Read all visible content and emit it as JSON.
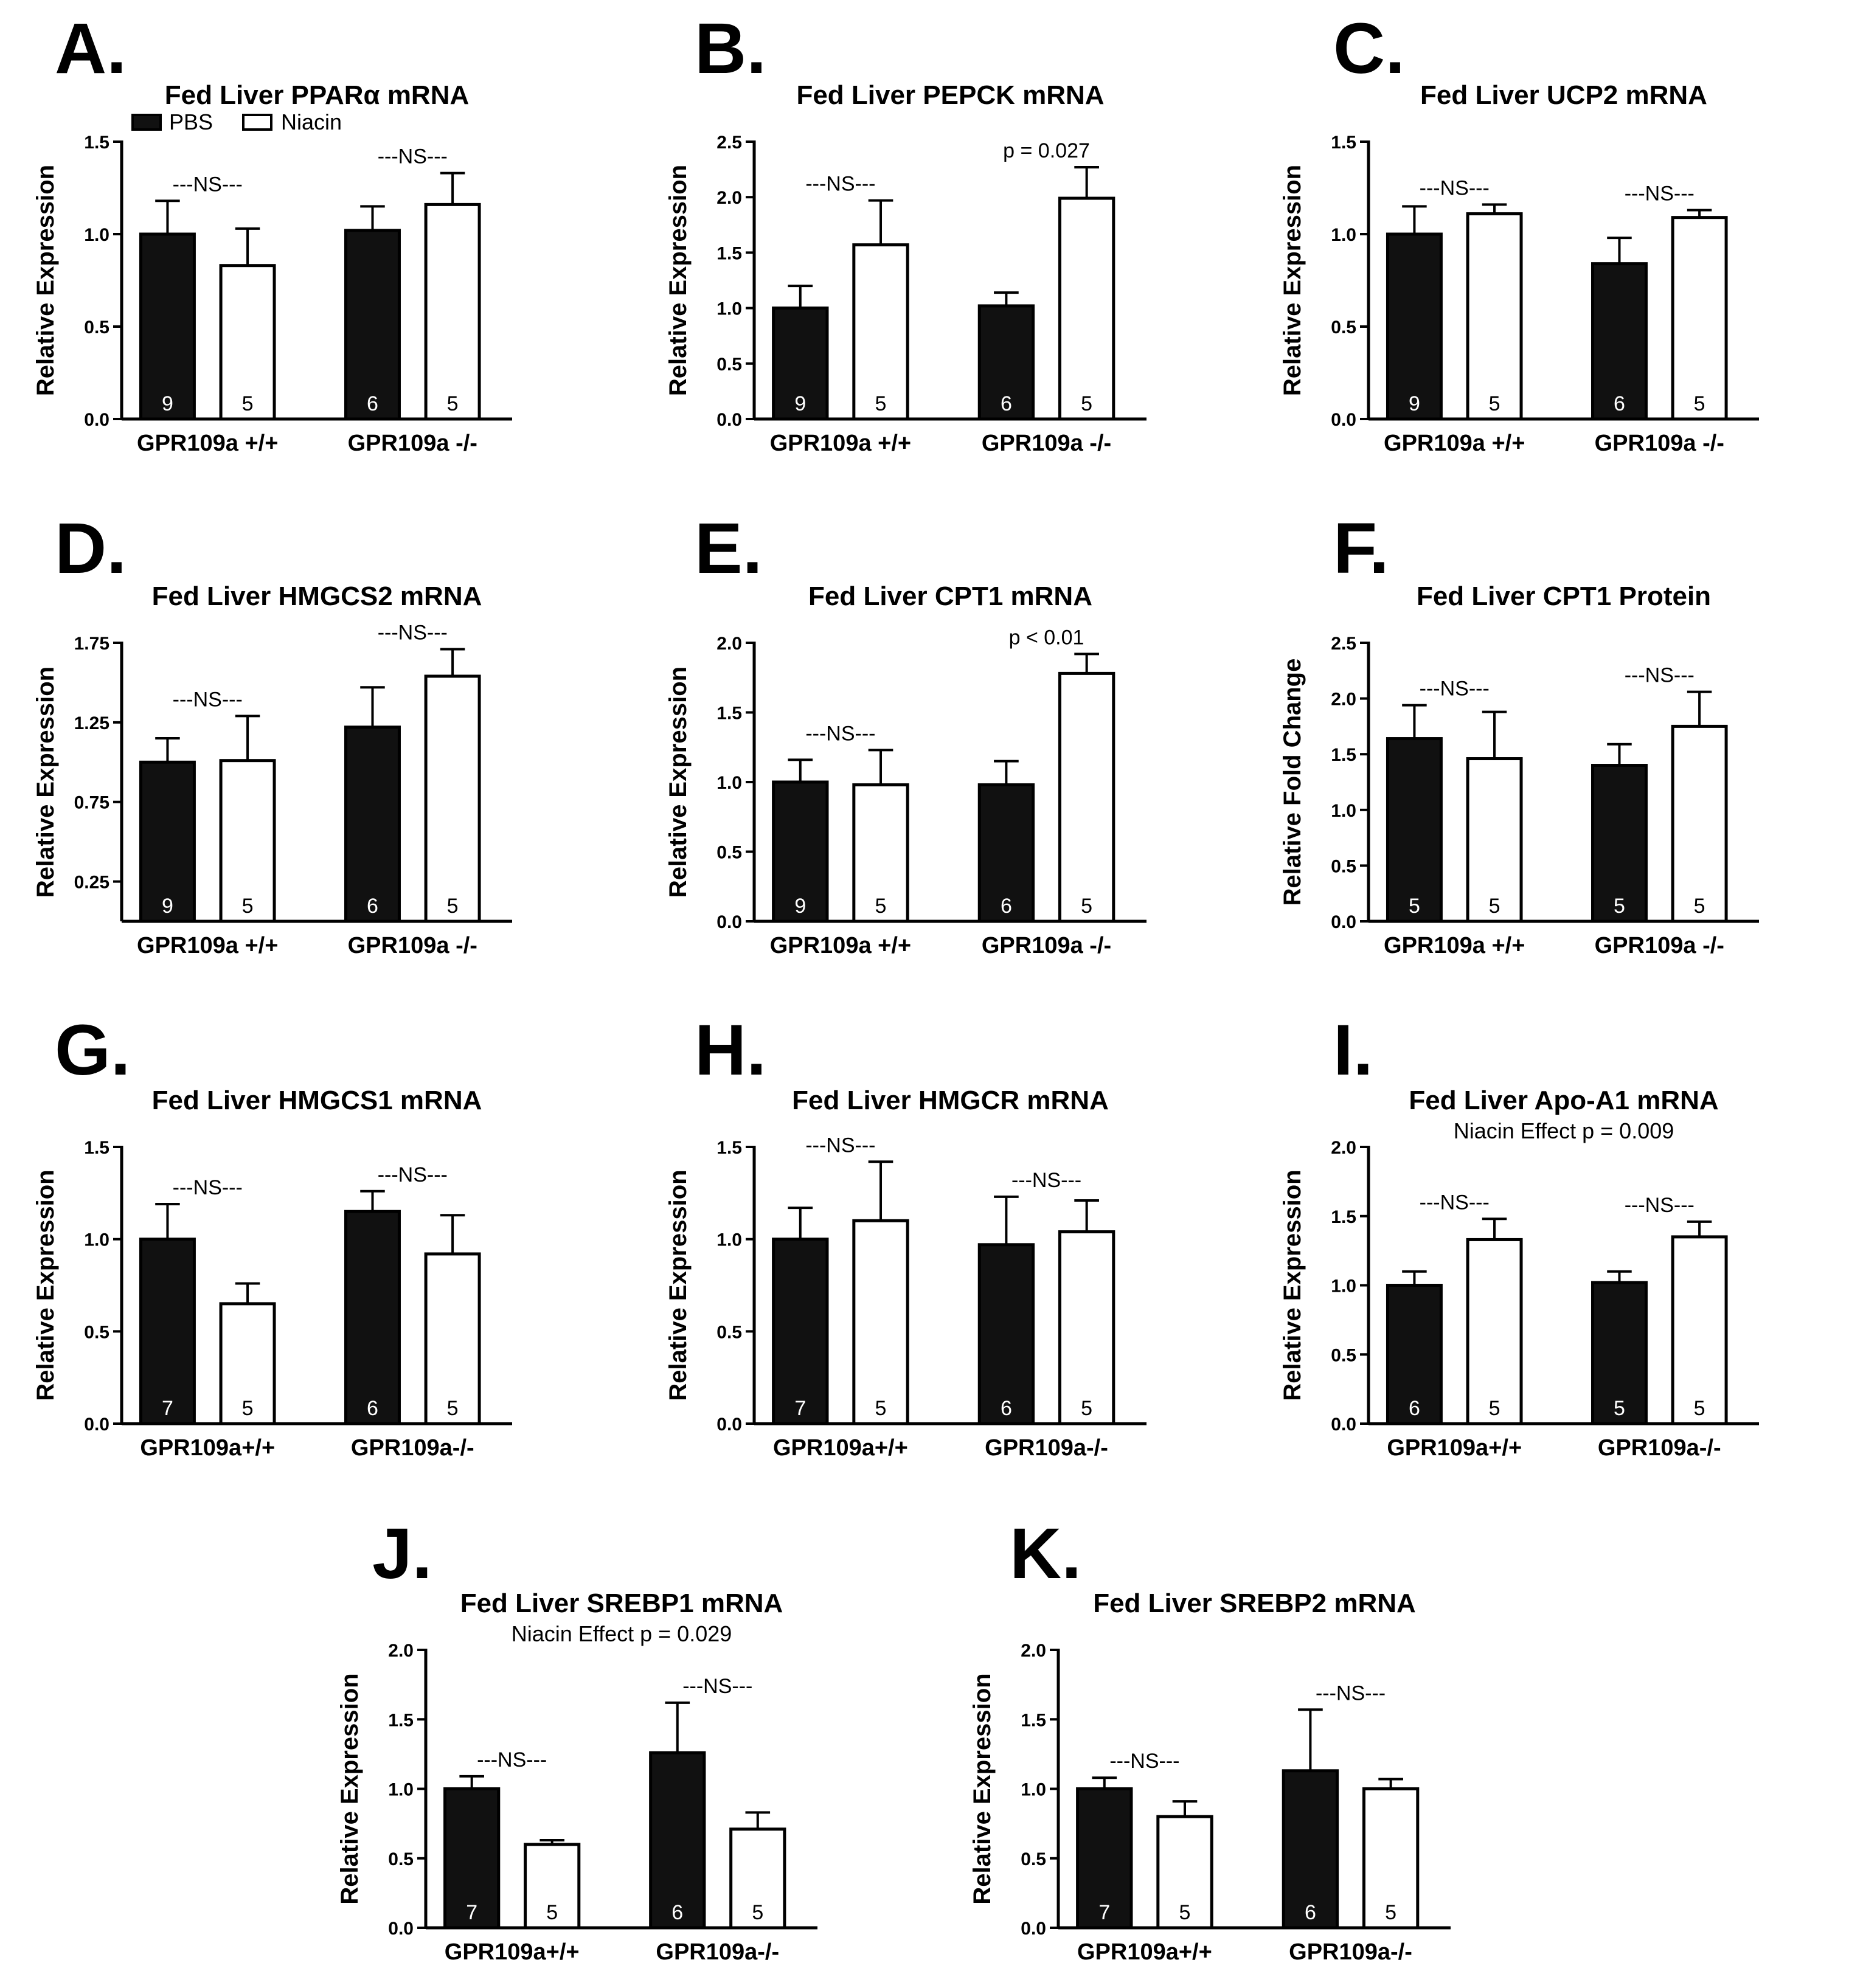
{
  "figure": {
    "legend": {
      "pbs": "PBS",
      "niacin": "Niacin",
      "pbs_color": "#111111",
      "niacin_color": "#ffffff"
    }
  },
  "chart_data": [
    {
      "panel": "A.",
      "type": "bar",
      "title": "Fed Liver PPARα mRNA",
      "subtitle": "",
      "ylabel": "Relative Expression",
      "ylim": [
        0,
        1.5
      ],
      "yticks": [
        0,
        0.5,
        1,
        1.5
      ],
      "ytick_labels": [
        "0.0",
        "0.5",
        "1.0",
        "1.5"
      ],
      "categories": [
        "GPR109a +/+",
        "GPR109a -/-"
      ],
      "series": [
        {
          "name": "PBS",
          "values": [
            1.0,
            1.02
          ],
          "errors": [
            0.18,
            0.13
          ],
          "n": [
            "9",
            "6"
          ]
        },
        {
          "name": "Niacin",
          "values": [
            0.83,
            1.16
          ],
          "errors": [
            0.2,
            0.17
          ],
          "n": [
            "5",
            "5"
          ]
        }
      ],
      "annotations": [
        "---NS---",
        "---NS---"
      ],
      "show_legend": true
    },
    {
      "panel": "B.",
      "type": "bar",
      "title": "Fed Liver PEPCK mRNA",
      "subtitle": "",
      "ylabel": "Relative Expression",
      "ylim": [
        0,
        2.5
      ],
      "yticks": [
        0,
        0.5,
        1,
        1.5,
        2,
        2.5
      ],
      "ytick_labels": [
        "0.0",
        "0.5",
        "1.0",
        "1.5",
        "2.0",
        "2.5"
      ],
      "categories": [
        "GPR109a +/+",
        "GPR109a -/-"
      ],
      "series": [
        {
          "name": "PBS",
          "values": [
            1.0,
            1.02
          ],
          "errors": [
            0.2,
            0.12
          ],
          "n": [
            "9",
            "6"
          ]
        },
        {
          "name": "Niacin",
          "values": [
            1.57,
            1.99
          ],
          "errors": [
            0.4,
            0.28
          ],
          "n": [
            "5",
            "5"
          ]
        }
      ],
      "annotations": [
        "---NS---",
        "p = 0.027"
      ]
    },
    {
      "panel": "C.",
      "type": "bar",
      "title": "Fed Liver UCP2 mRNA",
      "subtitle": "",
      "ylabel": "Relative Expression",
      "ylim": [
        0,
        1.5
      ],
      "yticks": [
        0,
        0.5,
        1,
        1.5
      ],
      "ytick_labels": [
        "0.0",
        "0.5",
        "1.0",
        "1.5"
      ],
      "categories": [
        "GPR109a +/+",
        "GPR109a -/-"
      ],
      "series": [
        {
          "name": "PBS",
          "values": [
            1.0,
            0.84
          ],
          "errors": [
            0.15,
            0.14
          ],
          "n": [
            "9",
            "6"
          ]
        },
        {
          "name": "Niacin",
          "values": [
            1.11,
            1.09
          ],
          "errors": [
            0.05,
            0.04
          ],
          "n": [
            "5",
            "5"
          ]
        }
      ],
      "annotations": [
        "---NS---",
        "---NS---"
      ]
    },
    {
      "panel": "D.",
      "type": "bar",
      "title": "Fed Liver HMGCS2 mRNA",
      "subtitle": "",
      "ylabel": "Relative Expression",
      "ylim": [
        0,
        1.75
      ],
      "yticks": [
        0.25,
        0.75,
        1.25,
        1.75
      ],
      "ytick_labels": [
        "0.25",
        "0.75",
        "1.25",
        "1.75"
      ],
      "categories": [
        "GPR109a +/+",
        "GPR109a -/-"
      ],
      "series": [
        {
          "name": "PBS",
          "values": [
            1.0,
            1.22
          ],
          "errors": [
            0.15,
            0.25
          ],
          "n": [
            "9",
            "6"
          ]
        },
        {
          "name": "Niacin",
          "values": [
            1.01,
            1.54
          ],
          "errors": [
            0.28,
            0.17
          ],
          "n": [
            "5",
            "5"
          ]
        }
      ],
      "annotations": [
        "---NS---",
        "---NS---"
      ]
    },
    {
      "panel": "E.",
      "type": "bar",
      "title": "Fed Liver CPT1 mRNA",
      "subtitle": "",
      "ylabel": "Relative Expression",
      "ylim": [
        0,
        2.0
      ],
      "yticks": [
        0,
        0.5,
        1,
        1.5,
        2
      ],
      "ytick_labels": [
        "0.0",
        "0.5",
        "1.0",
        "1.5",
        "2.0"
      ],
      "categories": [
        "GPR109a +/+",
        "GPR109a -/-"
      ],
      "series": [
        {
          "name": "PBS",
          "values": [
            1.0,
            0.98
          ],
          "errors": [
            0.16,
            0.17
          ],
          "n": [
            "9",
            "6"
          ]
        },
        {
          "name": "Niacin",
          "values": [
            0.98,
            1.78
          ],
          "errors": [
            0.25,
            0.14
          ],
          "n": [
            "5",
            "5"
          ]
        }
      ],
      "annotations": [
        "---NS---",
        "p < 0.01"
      ]
    },
    {
      "panel": "F.",
      "type": "bar",
      "title": "Fed Liver CPT1 Protein",
      "subtitle": "",
      "ylabel": "Relative Fold Change",
      "ylim": [
        0,
        2.5
      ],
      "yticks": [
        0,
        0.5,
        1,
        1.5,
        2,
        2.5
      ],
      "ytick_labels": [
        "0.0",
        "0.5",
        "1.0",
        "1.5",
        "2.0",
        "2.5"
      ],
      "categories": [
        "GPR109a +/+",
        "GPR109a -/-"
      ],
      "series": [
        {
          "name": "PBS",
          "values": [
            1.64,
            1.4
          ],
          "errors": [
            0.3,
            0.19
          ],
          "n": [
            "5",
            "5"
          ]
        },
        {
          "name": "Niacin",
          "values": [
            1.46,
            1.75
          ],
          "errors": [
            0.42,
            0.31
          ],
          "n": [
            "5",
            "5"
          ]
        }
      ],
      "annotations": [
        "---NS---",
        "---NS---"
      ]
    },
    {
      "panel": "G.",
      "type": "bar",
      "title": "Fed Liver HMGCS1 mRNA",
      "subtitle": "",
      "ylabel": "Relative Expression",
      "ylim": [
        0,
        1.5
      ],
      "yticks": [
        0,
        0.5,
        1,
        1.5
      ],
      "ytick_labels": [
        "0.0",
        "0.5",
        "1.0",
        "1.5"
      ],
      "categories": [
        "GPR109a+/+",
        "GPR109a-/-"
      ],
      "series": [
        {
          "name": "PBS",
          "values": [
            1.0,
            1.15
          ],
          "errors": [
            0.19,
            0.11
          ],
          "n": [
            "7",
            "6"
          ]
        },
        {
          "name": "Niacin",
          "values": [
            0.65,
            0.92
          ],
          "errors": [
            0.11,
            0.21
          ],
          "n": [
            "5",
            "5"
          ]
        }
      ],
      "annotations": [
        "---NS---",
        "---NS---"
      ]
    },
    {
      "panel": "H.",
      "type": "bar",
      "title": "Fed Liver HMGCR mRNA",
      "subtitle": "",
      "ylabel": "Relative Expression",
      "ylim": [
        0,
        1.5
      ],
      "yticks": [
        0,
        0.5,
        1,
        1.5
      ],
      "ytick_labels": [
        "0.0",
        "0.5",
        "1.0",
        "1.5"
      ],
      "categories": [
        "GPR109a+/+",
        "GPR109a-/-"
      ],
      "series": [
        {
          "name": "PBS",
          "values": [
            1.0,
            0.97
          ],
          "errors": [
            0.17,
            0.26
          ],
          "n": [
            "7",
            "6"
          ]
        },
        {
          "name": "Niacin",
          "values": [
            1.1,
            1.04
          ],
          "errors": [
            0.32,
            0.17
          ],
          "n": [
            "5",
            "5"
          ]
        }
      ],
      "annotations": [
        "---NS---",
        "---NS---"
      ]
    },
    {
      "panel": "I.",
      "type": "bar",
      "title": "Fed Liver Apo-A1 mRNA",
      "subtitle": "Niacin Effect p = 0.009",
      "ylabel": "Relative Expression",
      "ylim": [
        0,
        2.0
      ],
      "yticks": [
        0,
        0.5,
        1,
        1.5,
        2
      ],
      "ytick_labels": [
        "0.0",
        "0.5",
        "1.0",
        "1.5",
        "2.0"
      ],
      "categories": [
        "GPR109a+/+",
        "GPR109a-/-"
      ],
      "series": [
        {
          "name": "PBS",
          "values": [
            1.0,
            1.02
          ],
          "errors": [
            0.1,
            0.08
          ],
          "n": [
            "6",
            "5"
          ]
        },
        {
          "name": "Niacin",
          "values": [
            1.33,
            1.35
          ],
          "errors": [
            0.15,
            0.11
          ],
          "n": [
            "5",
            "5"
          ]
        }
      ],
      "annotations": [
        "---NS---",
        "---NS---"
      ]
    },
    {
      "panel": "J.",
      "type": "bar",
      "title": "Fed Liver SREBP1 mRNA",
      "subtitle": "Niacin Effect p = 0.029",
      "ylabel": "Relative Expression",
      "ylim": [
        0,
        2.0
      ],
      "yticks": [
        0,
        0.5,
        1,
        1.5,
        2
      ],
      "ytick_labels": [
        "0.0",
        "0.5",
        "1.0",
        "1.5",
        "2.0"
      ],
      "categories": [
        "GPR109a+/+",
        "GPR109a-/-"
      ],
      "series": [
        {
          "name": "PBS",
          "values": [
            1.0,
            1.26
          ],
          "errors": [
            0.09,
            0.36
          ],
          "n": [
            "7",
            "6"
          ]
        },
        {
          "name": "Niacin",
          "values": [
            0.6,
            0.71
          ],
          "errors": [
            0.03,
            0.12
          ],
          "n": [
            "5",
            "5"
          ]
        }
      ],
      "annotations": [
        "---NS---",
        "---NS---"
      ]
    },
    {
      "panel": "K.",
      "type": "bar",
      "title": "Fed Liver SREBP2 mRNA",
      "subtitle": "",
      "ylabel": "Relative Expression",
      "ylim": [
        0,
        2.0
      ],
      "yticks": [
        0,
        0.5,
        1,
        1.5,
        2
      ],
      "ytick_labels": [
        "0.0",
        "0.5",
        "1.0",
        "1.5",
        "2.0"
      ],
      "categories": [
        "GPR109a+/+",
        "GPR109a-/-"
      ],
      "series": [
        {
          "name": "PBS",
          "values": [
            1.0,
            1.13
          ],
          "errors": [
            0.08,
            0.44
          ],
          "n": [
            "7",
            "6"
          ]
        },
        {
          "name": "Niacin",
          "values": [
            0.8,
            1.0
          ],
          "errors": [
            0.11,
            0.07
          ],
          "n": [
            "5",
            "5"
          ]
        }
      ],
      "annotations": [
        "---NS---",
        "---NS---"
      ]
    }
  ]
}
